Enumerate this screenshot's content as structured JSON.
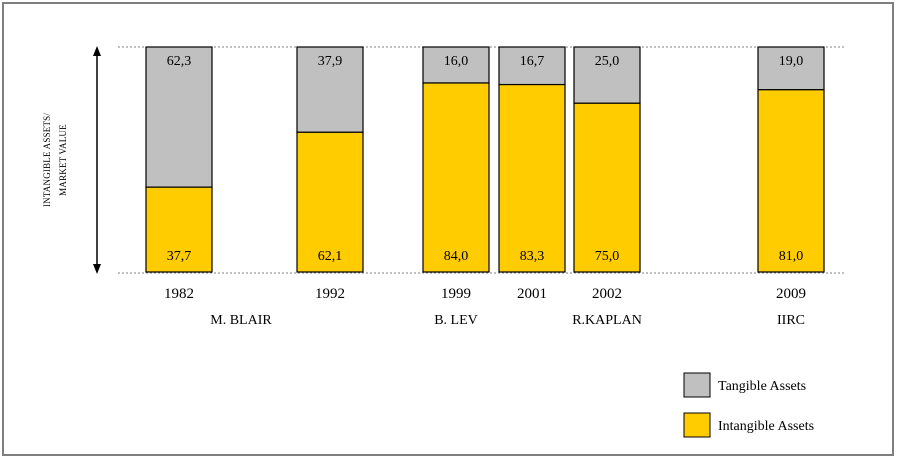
{
  "chart_data": {
    "type": "bar",
    "stacked": true,
    "percent_stacked": true,
    "ylabel_lines": [
      "INTANGIBLE ASSETS/",
      "MARKET VALUE"
    ],
    "ylim": [
      0,
      100
    ],
    "grid": false,
    "legend_position": "bottom-right",
    "categories": [
      "1982",
      "1992",
      "1999",
      "2001",
      "2002",
      "2009"
    ],
    "sources": [
      "M. BLAIR",
      "",
      "B. LEV",
      "",
      "R.KAPLAN",
      "IIRC"
    ],
    "series": [
      {
        "name": "Intangible Assets",
        "color": "#ffcc00",
        "values": [
          37.7,
          62.1,
          84.0,
          83.3,
          75.0,
          81.0
        ],
        "labels": [
          "37,7",
          "62,1",
          "84,0",
          "83,3",
          "75,0",
          "81,0"
        ]
      },
      {
        "name": "Tangible Assets",
        "color": "#c0c0c0",
        "values": [
          62.3,
          37.9,
          16.0,
          16.7,
          25.0,
          19.0
        ],
        "labels": [
          "62,3",
          "37,9",
          "16,0",
          "16,7",
          "25,0",
          "19,0"
        ]
      }
    ]
  }
}
